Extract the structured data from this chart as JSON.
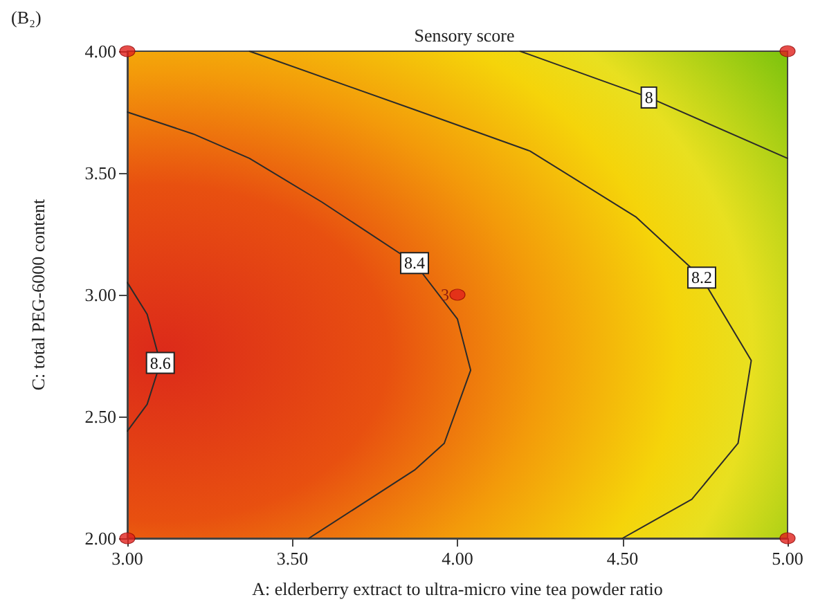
{
  "chart_data": {
    "type": "line",
    "title": "Sensory score",
    "xlabel": "A: elderberry extract to ultra-micro vine tea powder ratio",
    "ylabel": "C: total PEG-6000 content",
    "xlim": [
      3.0,
      5.0
    ],
    "xticks": [
      {
        "value": 3.0,
        "label": "3.00"
      },
      {
        "value": 3.5,
        "label": "3.50"
      },
      {
        "value": 4.0,
        "label": "4.00"
      },
      {
        "value": 4.5,
        "label": "4.50"
      },
      {
        "value": 5.0,
        "label": "5.00"
      }
    ],
    "ylim": [
      2.0,
      4.0
    ],
    "yticks": [
      {
        "value": 2.0,
        "label": "2.00"
      },
      {
        "value": 2.5,
        "label": "2.50"
      },
      {
        "value": 3.0,
        "label": "3.00"
      },
      {
        "value": 3.5,
        "label": "3.50"
      },
      {
        "value": 4.0,
        "label": "4.00"
      }
    ],
    "grid": false,
    "legend": false,
    "line_style": "solid",
    "series": [
      {
        "name": "8.6",
        "color": "#2b2b2b",
        "marker": "none",
        "x": [
          3.0,
          3.06,
          3.1,
          3.06,
          3.0
        ],
        "values": [
          3.05,
          2.92,
          2.72,
          2.55,
          2.44
        ]
      },
      {
        "name": "8.4",
        "color": "#2b2b2b",
        "marker": "none",
        "x": [
          3.0,
          3.2,
          3.37,
          3.59,
          3.87,
          4.0,
          4.04,
          3.96,
          3.87,
          3.55
        ],
        "values": [
          3.75,
          3.66,
          3.56,
          3.38,
          3.13,
          2.9,
          2.69,
          2.39,
          2.28,
          2.0
        ]
      },
      {
        "name": "8.2",
        "color": "#2b2b2b",
        "marker": "none",
        "x": [
          3.37,
          3.87,
          4.22,
          4.54,
          4.74,
          4.89,
          4.85,
          4.71,
          4.5
        ],
        "values": [
          4.0,
          3.76,
          3.59,
          3.32,
          3.07,
          2.73,
          2.39,
          2.16,
          2.0
        ]
      },
      {
        "name": "8",
        "color": "#2b2b2b",
        "marker": "none",
        "x": [
          4.19,
          4.58,
          5.0
        ],
        "values": [
          4.0,
          3.81,
          3.56
        ]
      },
      {
        "type": "scatter",
        "color": "#e0201b",
        "marker": "circle",
        "x": [
          3.0,
          5.0,
          3.0,
          5.0,
          4.0
        ],
        "values": [
          4.0,
          4.0,
          2.0,
          2.0,
          3.0
        ]
      }
    ],
    "annotations": [
      "(B₂)",
      {
        "text": "3",
        "x": 4.0,
        "y": 3.0
      }
    ]
  }
}
